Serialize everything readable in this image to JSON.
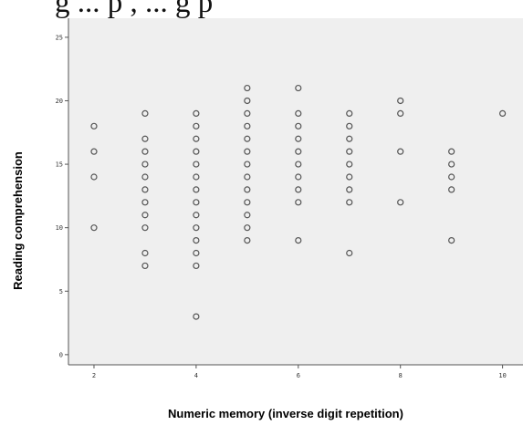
{
  "caption_fragment": "g ... p    ,    ...   g    p",
  "chart_data": {
    "type": "scatter",
    "title": "",
    "xlabel": "Numeric memory (inverse digit repetition)",
    "ylabel": "Reading comprehension",
    "xlim": [
      1.5,
      10.4
    ],
    "ylim": [
      -0.8,
      26.5
    ],
    "xticks": [
      2,
      4,
      6,
      8,
      10
    ],
    "yticks": [
      0,
      5,
      10,
      15,
      20,
      25
    ],
    "grid": false,
    "marker": "hollow-circle",
    "background": "#efefef",
    "marker_color": "#555555",
    "points": [
      {
        "x": 2,
        "y": 18
      },
      {
        "x": 2,
        "y": 16
      },
      {
        "x": 2,
        "y": 14
      },
      {
        "x": 2,
        "y": 10
      },
      {
        "x": 3,
        "y": 19
      },
      {
        "x": 3,
        "y": 17
      },
      {
        "x": 3,
        "y": 16
      },
      {
        "x": 3,
        "y": 15
      },
      {
        "x": 3,
        "y": 14
      },
      {
        "x": 3,
        "y": 13
      },
      {
        "x": 3,
        "y": 12
      },
      {
        "x": 3,
        "y": 11
      },
      {
        "x": 3,
        "y": 10
      },
      {
        "x": 3,
        "y": 8
      },
      {
        "x": 3,
        "y": 7
      },
      {
        "x": 4,
        "y": 19
      },
      {
        "x": 4,
        "y": 18
      },
      {
        "x": 4,
        "y": 17
      },
      {
        "x": 4,
        "y": 16
      },
      {
        "x": 4,
        "y": 15
      },
      {
        "x": 4,
        "y": 14
      },
      {
        "x": 4,
        "y": 13
      },
      {
        "x": 4,
        "y": 12
      },
      {
        "x": 4,
        "y": 11
      },
      {
        "x": 4,
        "y": 10
      },
      {
        "x": 4,
        "y": 9
      },
      {
        "x": 4,
        "y": 8
      },
      {
        "x": 4,
        "y": 7
      },
      {
        "x": 4,
        "y": 3
      },
      {
        "x": 5,
        "y": 21
      },
      {
        "x": 5,
        "y": 20
      },
      {
        "x": 5,
        "y": 19
      },
      {
        "x": 5,
        "y": 18
      },
      {
        "x": 5,
        "y": 17
      },
      {
        "x": 5,
        "y": 16
      },
      {
        "x": 5,
        "y": 15
      },
      {
        "x": 5,
        "y": 14
      },
      {
        "x": 5,
        "y": 13
      },
      {
        "x": 5,
        "y": 12
      },
      {
        "x": 5,
        "y": 11
      },
      {
        "x": 5,
        "y": 10
      },
      {
        "x": 5,
        "y": 9
      },
      {
        "x": 6,
        "y": 21
      },
      {
        "x": 6,
        "y": 19
      },
      {
        "x": 6,
        "y": 18
      },
      {
        "x": 6,
        "y": 17
      },
      {
        "x": 6,
        "y": 16
      },
      {
        "x": 6,
        "y": 15
      },
      {
        "x": 6,
        "y": 14
      },
      {
        "x": 6,
        "y": 13
      },
      {
        "x": 6,
        "y": 12
      },
      {
        "x": 6,
        "y": 9
      },
      {
        "x": 7,
        "y": 19
      },
      {
        "x": 7,
        "y": 18
      },
      {
        "x": 7,
        "y": 17
      },
      {
        "x": 7,
        "y": 16
      },
      {
        "x": 7,
        "y": 15
      },
      {
        "x": 7,
        "y": 14
      },
      {
        "x": 7,
        "y": 13
      },
      {
        "x": 7,
        "y": 12
      },
      {
        "x": 7,
        "y": 8
      },
      {
        "x": 8,
        "y": 20
      },
      {
        "x": 8,
        "y": 19
      },
      {
        "x": 8,
        "y": 16
      },
      {
        "x": 8,
        "y": 12
      },
      {
        "x": 9,
        "y": 16
      },
      {
        "x": 9,
        "y": 15
      },
      {
        "x": 9,
        "y": 14
      },
      {
        "x": 9,
        "y": 13
      },
      {
        "x": 9,
        "y": 9
      },
      {
        "x": 10,
        "y": 19
      }
    ]
  }
}
